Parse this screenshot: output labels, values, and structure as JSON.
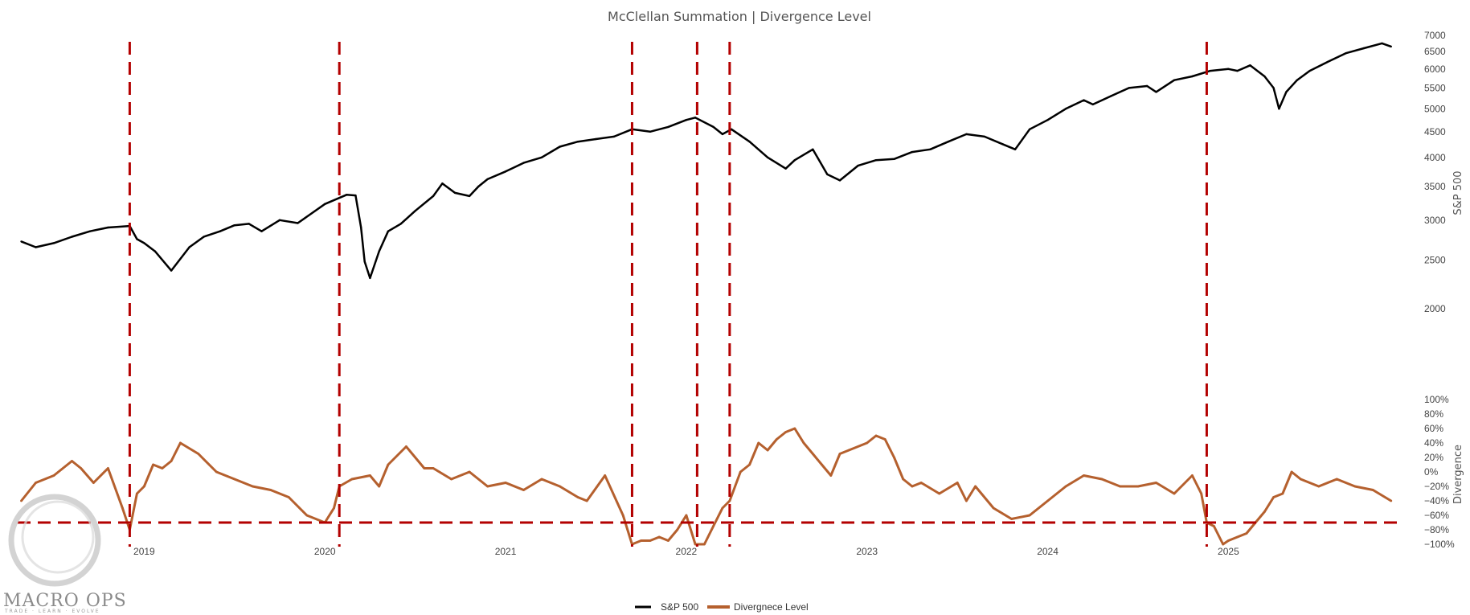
{
  "colors": {
    "sp500": "#000000",
    "divergence": "#b5602e",
    "signal": "#b30000",
    "text": "#555555",
    "logo": "#8a8a8a"
  },
  "logo": {
    "name": "MACRO OPS",
    "tagline": "TRADE · LEARN · EVOLVE"
  },
  "chart_data": {
    "type": "line",
    "title": "McClellan Summation | Divergence Level",
    "x_ticks": [
      "2019",
      "2020",
      "2021",
      "2022",
      "2023",
      "2024",
      "2025"
    ],
    "x_range": [
      2018.3,
      2025.95
    ],
    "signal_dates": [
      2018.92,
      2020.08,
      2021.7,
      2022.06,
      2022.24,
      2024.88
    ],
    "legend": {
      "placement": "bottom-center"
    },
    "grid": false,
    "series": [
      {
        "name": "S&P 500",
        "axis": "top",
        "scale": "log",
        "ylabel": "S&P 500",
        "ylim": [
          1750,
          7000
        ],
        "y_ticks": [
          7000,
          6500,
          6000,
          5500,
          5000,
          4500,
          4000,
          3500,
          3000,
          2500,
          2000
        ],
        "x": [
          2018.32,
          2018.4,
          2018.5,
          2018.6,
          2018.7,
          2018.8,
          2018.92,
          2018.96,
          2019.0,
          2019.06,
          2019.15,
          2019.25,
          2019.33,
          2019.42,
          2019.5,
          2019.58,
          2019.65,
          2019.75,
          2019.85,
          2020.0,
          2020.12,
          2020.17,
          2020.2,
          2020.22,
          2020.25,
          2020.3,
          2020.35,
          2020.42,
          2020.5,
          2020.6,
          2020.65,
          2020.72,
          2020.8,
          2020.85,
          2020.9,
          2021.0,
          2021.1,
          2021.2,
          2021.3,
          2021.4,
          2021.5,
          2021.6,
          2021.7,
          2021.8,
          2021.9,
          2022.0,
          2022.05,
          2022.15,
          2022.2,
          2022.25,
          2022.35,
          2022.45,
          2022.55,
          2022.6,
          2022.7,
          2022.78,
          2022.85,
          2022.95,
          2023.05,
          2023.15,
          2023.25,
          2023.35,
          2023.45,
          2023.55,
          2023.65,
          2023.75,
          2023.82,
          2023.9,
          2024.0,
          2024.1,
          2024.2,
          2024.25,
          2024.35,
          2024.45,
          2024.55,
          2024.6,
          2024.7,
          2024.8,
          2024.9,
          2025.0,
          2025.05,
          2025.12,
          2025.2,
          2025.25,
          2025.28,
          2025.32,
          2025.38,
          2025.45,
          2025.55,
          2025.65,
          2025.75,
          2025.85,
          2025.9
        ],
        "y": [
          2720,
          2650,
          2700,
          2780,
          2850,
          2900,
          2920,
          2750,
          2700,
          2600,
          2380,
          2650,
          2780,
          2850,
          2930,
          2950,
          2850,
          3000,
          2960,
          3230,
          3370,
          3360,
          2900,
          2480,
          2300,
          2600,
          2850,
          2950,
          3130,
          3350,
          3550,
          3400,
          3350,
          3500,
          3620,
          3750,
          3900,
          4000,
          4200,
          4300,
          4350,
          4400,
          4550,
          4500,
          4600,
          4750,
          4800,
          4600,
          4450,
          4550,
          4300,
          4000,
          3800,
          3950,
          4150,
          3700,
          3600,
          3850,
          3950,
          3970,
          4100,
          4150,
          4300,
          4450,
          4400,
          4250,
          4150,
          4550,
          4750,
          5000,
          5200,
          5100,
          5300,
          5500,
          5550,
          5400,
          5700,
          5800,
          5950,
          6000,
          5950,
          6100,
          5800,
          5500,
          5000,
          5400,
          5700,
          5950,
          6200,
          6450,
          6600,
          6750,
          6650
        ]
      },
      {
        "name": "Divergnece Level",
        "axis": "bottom",
        "scale": "linear",
        "ylabel": "Divergence",
        "ylim": [
          -100,
          100
        ],
        "y_ticks": [
          "100%",
          "80%",
          "60%",
          "40%",
          "20%",
          "0%",
          "−20%",
          "−40%",
          "−60%",
          "−80%",
          "−100%"
        ],
        "y_tick_values": [
          100,
          80,
          60,
          40,
          20,
          0,
          -20,
          -40,
          -60,
          -80,
          -100
        ],
        "threshold": -70,
        "x": [
          2018.32,
          2018.4,
          2018.5,
          2018.6,
          2018.65,
          2018.72,
          2018.8,
          2018.88,
          2018.92,
          2018.96,
          2019.0,
          2019.05,
          2019.1,
          2019.15,
          2019.2,
          2019.3,
          2019.4,
          2019.5,
          2019.6,
          2019.7,
          2019.8,
          2019.9,
          2020.0,
          2020.05,
          2020.08,
          2020.15,
          2020.25,
          2020.3,
          2020.35,
          2020.45,
          2020.55,
          2020.6,
          2020.7,
          2020.8,
          2020.9,
          2021.0,
          2021.1,
          2021.2,
          2021.3,
          2021.4,
          2021.45,
          2021.55,
          2021.65,
          2021.7,
          2021.75,
          2021.8,
          2021.85,
          2021.9,
          2021.95,
          2022.0,
          2022.05,
          2022.1,
          2022.15,
          2022.2,
          2022.24,
          2022.3,
          2022.35,
          2022.4,
          2022.45,
          2022.5,
          2022.55,
          2022.6,
          2022.65,
          2022.7,
          2022.75,
          2022.8,
          2022.85,
          2022.9,
          2023.0,
          2023.05,
          2023.1,
          2023.15,
          2023.2,
          2023.25,
          2023.3,
          2023.4,
          2023.5,
          2023.55,
          2023.6,
          2023.7,
          2023.8,
          2023.9,
          2024.0,
          2024.1,
          2024.2,
          2024.3,
          2024.4,
          2024.5,
          2024.6,
          2024.7,
          2024.8,
          2024.85,
          2024.88,
          2024.92,
          2024.97,
          2025.0,
          2025.05,
          2025.1,
          2025.15,
          2025.2,
          2025.25,
          2025.3,
          2025.35,
          2025.4,
          2025.5,
          2025.6,
          2025.7,
          2025.8,
          2025.9
        ],
        "y": [
          -40,
          -15,
          -5,
          15,
          5,
          -15,
          5,
          -50,
          -80,
          -30,
          -20,
          10,
          5,
          15,
          40,
          25,
          0,
          -10,
          -20,
          -25,
          -35,
          -60,
          -70,
          -50,
          -20,
          -10,
          -5,
          -20,
          10,
          35,
          5,
          5,
          -10,
          0,
          -20,
          -15,
          -25,
          -10,
          -20,
          -35,
          -40,
          -5,
          -60,
          -100,
          -95,
          -95,
          -90,
          -95,
          -80,
          -60,
          -100,
          -100,
          -75,
          -50,
          -40,
          0,
          10,
          40,
          30,
          45,
          55,
          60,
          40,
          25,
          10,
          -5,
          25,
          30,
          40,
          50,
          45,
          20,
          -10,
          -20,
          -15,
          -30,
          -15,
          -40,
          -20,
          -50,
          -65,
          -60,
          -40,
          -20,
          -5,
          -10,
          -20,
          -20,
          -15,
          -30,
          -5,
          -30,
          -70,
          -75,
          -100,
          -95,
          -90,
          -85,
          -70,
          -55,
          -35,
          -30,
          0,
          -10,
          -20,
          -10,
          -20,
          -25,
          -40
        ]
      }
    ]
  }
}
